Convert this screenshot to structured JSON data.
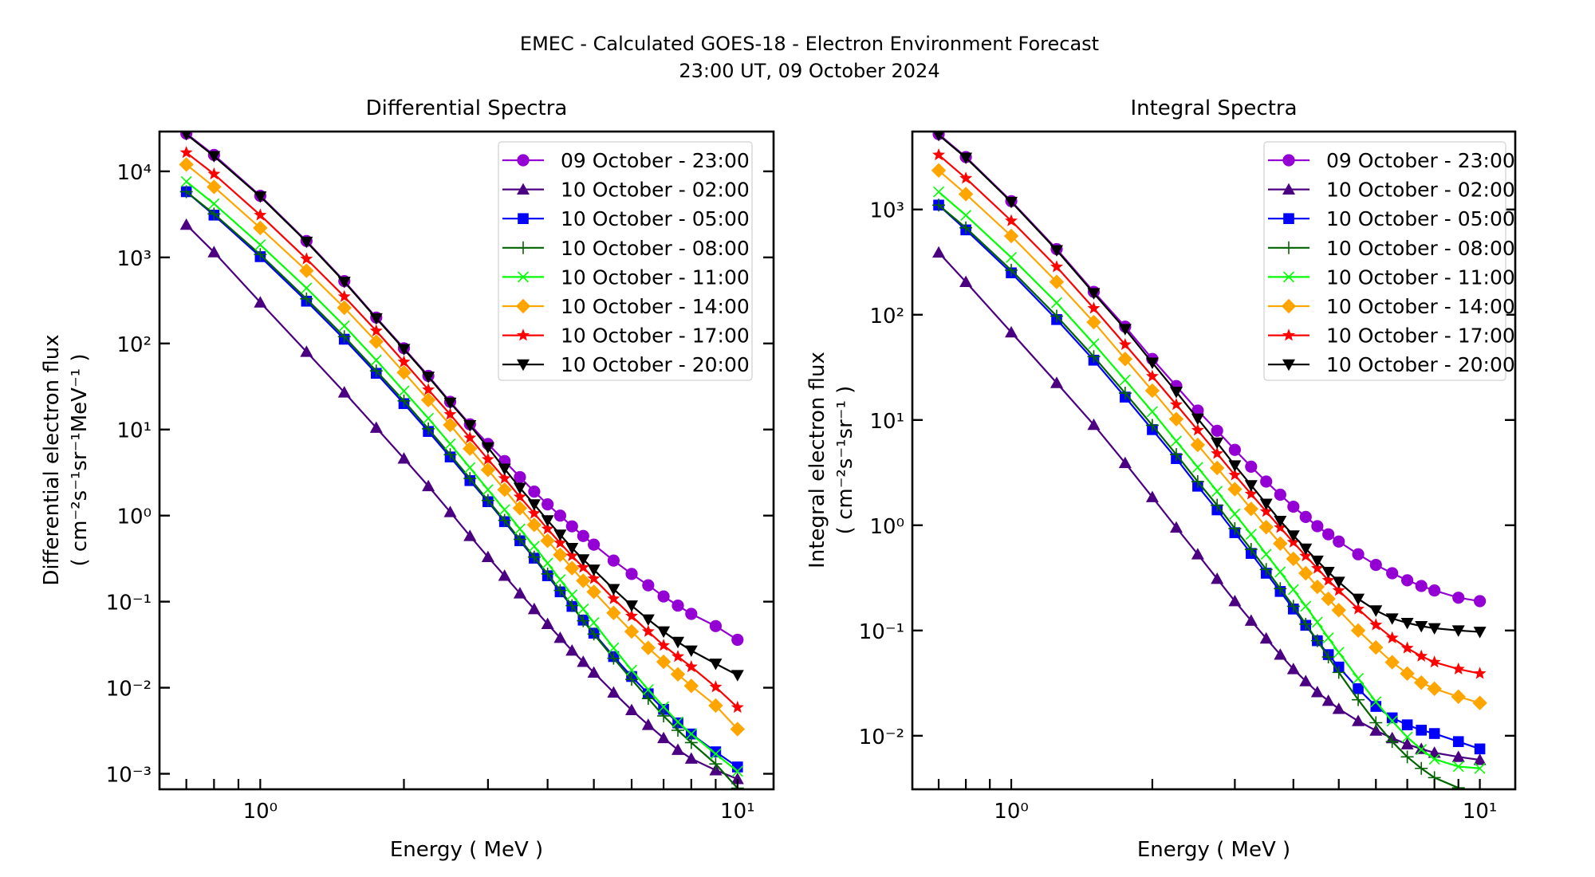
{
  "figure": {
    "suptitle_line1": "EMEC - Calculated GOES-18 - Electron Environment Forecast",
    "suptitle_line2": "23:00 UT, 09 October 2024"
  },
  "legend_entries": [
    {
      "label": "09 October - 23:00",
      "color": "#9400d3",
      "marker": "circle"
    },
    {
      "label": "10 October - 02:00",
      "color": "#4b0082",
      "marker": "triangle-up"
    },
    {
      "label": "10 October - 05:00",
      "color": "#0000ff",
      "marker": "square"
    },
    {
      "label": "10 October - 08:00",
      "color": "#006400",
      "marker": "plus"
    },
    {
      "label": "10 October - 11:00",
      "color": "#00ff00",
      "marker": "x"
    },
    {
      "label": "10 October - 14:00",
      "color": "#ffa500",
      "marker": "diamond"
    },
    {
      "label": "10 October - 17:00",
      "color": "#ff0000",
      "marker": "star"
    },
    {
      "label": "10 October - 20:00",
      "color": "#000000",
      "marker": "triangle-down"
    }
  ],
  "chart_data": [
    {
      "type": "line",
      "title": "Differential Spectra",
      "xlabel": "Energy ( MeV )",
      "ylabel_line1": "Differential electron flux",
      "ylabel_line2": "( cm⁻²s⁻¹sr⁻¹MeV⁻¹ )",
      "xscale": "log",
      "yscale": "log",
      "xlim": [
        0.615,
        11.9
      ],
      "ylim": [
        0.00066,
        29000
      ],
      "xticks": [
        {
          "value": 1,
          "label": "10⁰"
        },
        {
          "value": 10,
          "label": "10¹"
        }
      ],
      "yticks": [
        {
          "value": 0.001,
          "label": "10⁻³"
        },
        {
          "value": 0.01,
          "label": "10⁻²"
        },
        {
          "value": 0.1,
          "label": "10⁻¹"
        },
        {
          "value": 1,
          "label": "10⁰"
        },
        {
          "value": 10,
          "label": "10¹"
        },
        {
          "value": 100,
          "label": "10²"
        },
        {
          "value": 1000,
          "label": "10³"
        },
        {
          "value": 10000,
          "label": "10⁴"
        }
      ],
      "grid": false,
      "legend_position": "top-right",
      "x": [
        0.7,
        0.8,
        1.0,
        1.25,
        1.5,
        1.75,
        2.0,
        2.25,
        2.5,
        2.75,
        3.0,
        3.25,
        3.5,
        3.75,
        4.0,
        4.25,
        4.5,
        4.75,
        5.0,
        5.5,
        6.0,
        6.5,
        7.0,
        7.5,
        8.0,
        9.0,
        10.0
      ],
      "series": [
        {
          "name": "09 October - 23:00",
          "values": [
            27500,
            15500,
            5200,
            1550,
            530,
            200,
            88,
            42,
            21,
            11.5,
            6.8,
            4.3,
            2.8,
            1.9,
            1.35,
            1.0,
            0.75,
            0.58,
            0.46,
            0.3,
            0.21,
            0.155,
            0.115,
            0.09,
            0.072,
            0.052,
            0.036
          ]
        },
        {
          "name": "10 October - 02:00",
          "values": [
            2400,
            1150,
            300,
            80,
            27,
            10.5,
            4.6,
            2.2,
            1.1,
            0.58,
            0.33,
            0.2,
            0.125,
            0.082,
            0.055,
            0.038,
            0.027,
            0.02,
            0.015,
            0.0088,
            0.0055,
            0.0037,
            0.0026,
            0.0019,
            0.0015,
            0.0011,
            0.00087
          ]
        },
        {
          "name": "10 October - 05:00",
          "values": [
            5800,
            3100,
            1020,
            310,
            112,
            45,
            20,
            9.5,
            4.8,
            2.55,
            1.45,
            0.85,
            0.51,
            0.32,
            0.2,
            0.13,
            0.088,
            0.061,
            0.043,
            0.023,
            0.0135,
            0.0085,
            0.0056,
            0.0039,
            0.0029,
            0.0018,
            0.0012
          ]
        },
        {
          "name": "10 October - 08:00",
          "values": [
            5800,
            3200,
            1080,
            330,
            120,
            48,
            21.5,
            10.2,
            5.1,
            2.7,
            1.5,
            0.88,
            0.53,
            0.33,
            0.21,
            0.135,
            0.09,
            0.06,
            0.042,
            0.022,
            0.0125,
            0.0075,
            0.0047,
            0.0032,
            0.0023,
            0.0013,
            0.00068
          ]
        },
        {
          "name": "10 October - 11:00",
          "values": [
            7600,
            4200,
            1400,
            440,
            160,
            64,
            28,
            13.5,
            6.8,
            3.6,
            2.0,
            1.17,
            0.7,
            0.44,
            0.28,
            0.18,
            0.12,
            0.082,
            0.057,
            0.029,
            0.016,
            0.0095,
            0.006,
            0.004,
            0.0029,
            0.0017,
            0.00107
          ]
        },
        {
          "name": "10 October - 14:00",
          "values": [
            12000,
            6600,
            2200,
            700,
            260,
            105,
            46,
            22,
            11.3,
            6.0,
            3.4,
            2.0,
            1.22,
            0.78,
            0.51,
            0.35,
            0.245,
            0.175,
            0.13,
            0.074,
            0.045,
            0.029,
            0.02,
            0.0143,
            0.0105,
            0.0062,
            0.0033
          ]
        },
        {
          "name": "10 October - 17:00",
          "values": [
            16500,
            9300,
            3100,
            960,
            350,
            140,
            61,
            29,
            15,
            8.0,
            4.5,
            2.7,
            1.65,
            1.06,
            0.7,
            0.48,
            0.34,
            0.25,
            0.185,
            0.108,
            0.068,
            0.045,
            0.031,
            0.023,
            0.0175,
            0.0102,
            0.0059
          ]
        },
        {
          "name": "10 October - 20:00",
          "values": [
            27000,
            15000,
            5100,
            1520,
            520,
            196,
            86,
            41,
            20.5,
            11.2,
            6.2,
            3.5,
            2.1,
            1.35,
            0.88,
            0.6,
            0.42,
            0.31,
            0.235,
            0.14,
            0.09,
            0.062,
            0.045,
            0.034,
            0.027,
            0.019,
            0.014
          ]
        }
      ]
    },
    {
      "type": "line",
      "title": "Integral Spectra",
      "xlabel": "Energy ( MeV )",
      "ylabel_line1": "Integral electron flux",
      "ylabel_line2": "( cm⁻²s⁻¹sr⁻¹ )",
      "xscale": "log",
      "yscale": "log",
      "xlim": [
        0.615,
        11.9
      ],
      "ylim": [
        0.0031,
        5500
      ],
      "xticks": [
        {
          "value": 1,
          "label": "10⁰"
        },
        {
          "value": 10,
          "label": "10¹"
        }
      ],
      "yticks": [
        {
          "value": 0.01,
          "label": "10⁻²"
        },
        {
          "value": 0.1,
          "label": "10⁻¹"
        },
        {
          "value": 1,
          "label": "10⁰"
        },
        {
          "value": 10,
          "label": "10¹"
        },
        {
          "value": 100,
          "label": "10²"
        },
        {
          "value": 1000,
          "label": "10³"
        }
      ],
      "grid": false,
      "legend_position": "top-right",
      "x": [
        0.7,
        0.8,
        1.0,
        1.25,
        1.5,
        1.75,
        2.0,
        2.25,
        2.5,
        2.75,
        3.0,
        3.25,
        3.5,
        3.75,
        4.0,
        4.25,
        4.5,
        4.75,
        5.0,
        5.5,
        6.0,
        6.5,
        7.0,
        7.5,
        8.0,
        9.0,
        10.0
      ],
      "series": [
        {
          "name": "09 October - 23:00",
          "values": [
            5200,
            3150,
            1200,
            420,
            165,
            77,
            38,
            21,
            12.3,
            7.9,
            5.2,
            3.6,
            2.6,
            1.95,
            1.5,
            1.2,
            0.98,
            0.82,
            0.7,
            0.53,
            0.42,
            0.35,
            0.3,
            0.265,
            0.24,
            0.205,
            0.19
          ]
        },
        {
          "name": "10 October - 02:00",
          "values": [
            390,
            205,
            68,
            22.5,
            9.0,
            3.9,
            1.85,
            0.95,
            0.53,
            0.31,
            0.19,
            0.124,
            0.084,
            0.059,
            0.043,
            0.033,
            0.026,
            0.0215,
            0.018,
            0.0138,
            0.0112,
            0.0095,
            0.0083,
            0.0075,
            0.0069,
            0.0063,
            0.0059
          ]
        },
        {
          "name": "10 October - 05:00",
          "values": [
            1100,
            640,
            250,
            90,
            37,
            16.5,
            8.1,
            4.3,
            2.35,
            1.4,
            0.85,
            0.54,
            0.35,
            0.235,
            0.16,
            0.112,
            0.08,
            0.059,
            0.045,
            0.028,
            0.019,
            0.0148,
            0.0127,
            0.0113,
            0.0105,
            0.0088,
            0.0075
          ]
        },
        {
          "name": "10 October - 08:00",
          "values": [
            1100,
            670,
            265,
            97,
            40,
            18,
            8.9,
            4.7,
            2.6,
            1.55,
            0.93,
            0.59,
            0.38,
            0.25,
            0.17,
            0.115,
            0.08,
            0.056,
            0.04,
            0.022,
            0.0133,
            0.0088,
            0.0063,
            0.0049,
            0.004,
            0.0032,
            0.0027
          ]
        },
        {
          "name": "10 October - 11:00",
          "values": [
            1470,
            880,
            350,
            130,
            53,
            24,
            12,
            6.3,
            3.55,
            2.1,
            1.28,
            0.82,
            0.53,
            0.36,
            0.245,
            0.17,
            0.12,
            0.085,
            0.062,
            0.035,
            0.021,
            0.0138,
            0.0097,
            0.0074,
            0.006,
            0.0051,
            0.0049
          ]
        },
        {
          "name": "10 October - 14:00",
          "values": [
            2350,
            1400,
            560,
            205,
            85,
            38,
            19,
            10.2,
            5.8,
            3.5,
            2.2,
            1.43,
            0.96,
            0.67,
            0.48,
            0.35,
            0.26,
            0.2,
            0.156,
            0.1,
            0.069,
            0.05,
            0.039,
            0.032,
            0.028,
            0.0235,
            0.0205
          ]
        },
        {
          "name": "10 October - 17:00",
          "values": [
            3300,
            1980,
            780,
            285,
            115,
            52,
            26,
            14,
            8.0,
            4.8,
            3.0,
            1.98,
            1.35,
            0.95,
            0.69,
            0.51,
            0.39,
            0.3,
            0.24,
            0.16,
            0.113,
            0.085,
            0.068,
            0.057,
            0.05,
            0.043,
            0.039
          ]
        },
        {
          "name": "10 October - 20:00",
          "values": [
            5100,
            3100,
            1180,
            410,
            160,
            73,
            35,
            18.5,
            10.3,
            6.1,
            3.7,
            2.4,
            1.6,
            1.1,
            0.8,
            0.6,
            0.46,
            0.36,
            0.29,
            0.2,
            0.155,
            0.13,
            0.118,
            0.11,
            0.105,
            0.1,
            0.097
          ]
        }
      ]
    }
  ]
}
